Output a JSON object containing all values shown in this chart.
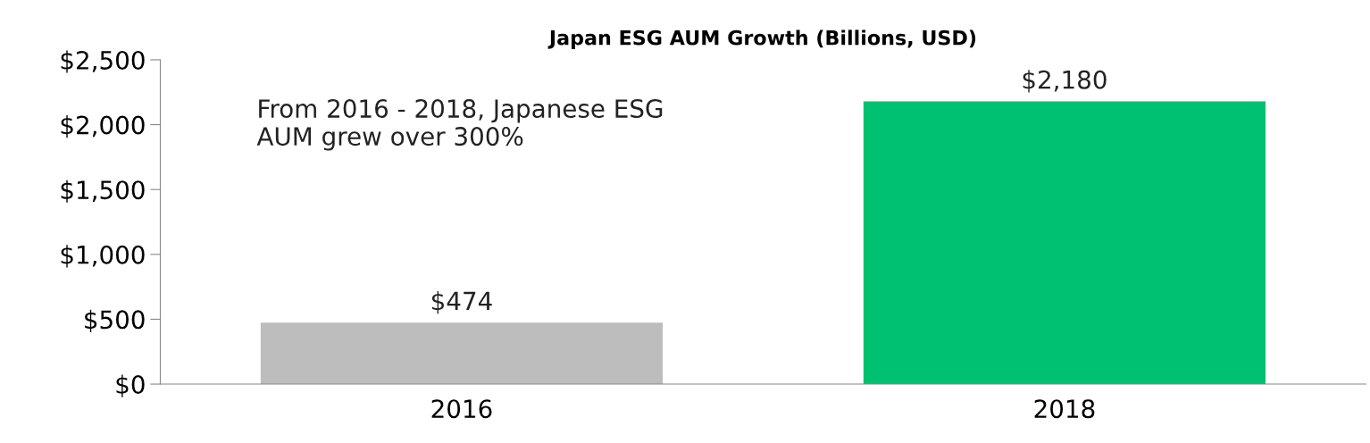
{
  "chart_data": {
    "type": "bar",
    "title": "Japan ESG AUM Growth (Billions, USD)",
    "categories": [
      "2016",
      "2018"
    ],
    "values": [
      474,
      2180
    ],
    "colors": [
      "#bdbdbd",
      "#00c071"
    ],
    "value_labels": [
      "$474",
      "$2,180"
    ],
    "ylim": [
      0,
      2500
    ],
    "yticks": [
      {
        "value": 0,
        "label": "$0"
      },
      {
        "value": 500,
        "label": "$500"
      },
      {
        "value": 1000,
        "label": "$1,000"
      },
      {
        "value": 1500,
        "label": "$1,500"
      },
      {
        "value": 2000,
        "label": "$2,000"
      },
      {
        "value": 2500,
        "label": "$2,500"
      }
    ],
    "annotations": [
      "From 2016 - 2018, Japanese ESG\nAUM grew over 300%"
    ],
    "grid": false,
    "legend": false
  }
}
